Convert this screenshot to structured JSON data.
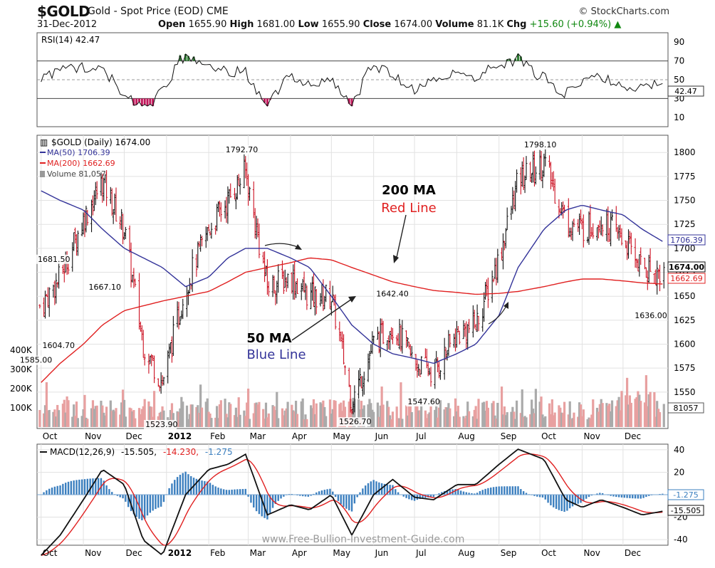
{
  "header": {
    "symbol": "$GOLD",
    "description": "Gold - Spot Price (EOD) CME",
    "brand": "© StockCharts.com",
    "date": "31-Dec-2012",
    "open_label": "Open",
    "open": "1655.90",
    "high_label": "High",
    "high": "1681.00",
    "low_label": "Low",
    "low": "1655.90",
    "close_label": "Close",
    "close": "1674.00",
    "volume_label": "Volume",
    "volume": "81.1K",
    "chg_label": "Chg",
    "chg": "+15.60 (+0.94%)"
  },
  "rsi_panel": {
    "label": "RSI(14) 42.47",
    "value_tag": "42.47",
    "ticks": [
      90,
      70,
      50,
      30,
      10
    ]
  },
  "price_panel": {
    "legend_title": "$GOLD (Daily) 1674.00",
    "legend_ma50": "MA(50) 1706.39",
    "legend_ma200": "MA(200) 1662.69",
    "legend_volume": "Volume 81,057",
    "price_tag_close": "1674.00",
    "price_tag_ma50": "1706.39",
    "price_tag_ma200": "1662.69",
    "volume_tag": "81057",
    "annot_200": "200 MA",
    "annot_200_sub": "Red Line",
    "annot_50": "50 MA",
    "annot_50_sub": "Blue Line",
    "vol_ticks": [
      "400K",
      "300K",
      "200K",
      "100K"
    ]
  },
  "macd_panel": {
    "label_prefix": "MACD(12,26,9)",
    "label_v1": "-15.505,",
    "label_v2": "-14.230,",
    "label_v3": "-1.275",
    "tag_hist": "-1.275",
    "tag_macd": "-15.505",
    "ticks": [
      40,
      20,
      0,
      -20,
      -40
    ],
    "watermark": "www.Free-Bullion-Investment-Guide.com"
  },
  "x_axis": [
    "Oct",
    "Nov",
    "Dec",
    "2012",
    "Feb",
    "Mar",
    "Apr",
    "May",
    "Jun",
    "Jul",
    "Aug",
    "Sep",
    "Oct",
    "Nov",
    "Dec"
  ],
  "colors": {
    "price_up": "#111111",
    "price_down": "#cc1122",
    "ma50": "#333399",
    "ma200": "#e02020",
    "volume_up": "#aaaaaa",
    "volume_down": "#e8a0a0",
    "macd_hist": "#3b7fbf",
    "rsi_fill_over": "#2e7d32",
    "rsi_fill_under": "#c2185b"
  },
  "chart_data": {
    "type": "line",
    "title": "$GOLD Gold - Spot Price (EOD) CME",
    "period": "Daily, Oct 2011 - Dec 2012",
    "x": [
      "2011-10-01",
      "2011-10-15",
      "2011-11-01",
      "2011-11-15",
      "2011-12-01",
      "2011-12-15",
      "2011-12-29",
      "2012-01-15",
      "2012-02-01",
      "2012-02-15",
      "2012-02-28",
      "2012-03-15",
      "2012-04-01",
      "2012-04-15",
      "2012-05-01",
      "2012-05-16",
      "2012-06-01",
      "2012-06-15",
      "2012-07-01",
      "2012-07-15",
      "2012-08-01",
      "2012-08-15",
      "2012-09-01",
      "2012-09-15",
      "2012-10-04",
      "2012-10-20",
      "2012-11-01",
      "2012-11-15",
      "2012-12-01",
      "2012-12-15",
      "2012-12-31"
    ],
    "series": [
      {
        "name": "$GOLD",
        "values": [
          1640,
          1670,
          1730,
          1770,
          1720,
          1600,
          1560,
          1660,
          1720,
          1750,
          1780,
          1660,
          1670,
          1650,
          1650,
          1540,
          1600,
          1620,
          1580,
          1570,
          1610,
          1620,
          1690,
          1770,
          1790,
          1730,
          1720,
          1730,
          1710,
          1680,
          1674
        ]
      },
      {
        "name": "MA(50)",
        "values": [
          1760,
          1750,
          1740,
          1720,
          1700,
          1690,
          1680,
          1660,
          1670,
          1690,
          1700,
          1700,
          1690,
          1680,
          1650,
          1620,
          1600,
          1590,
          1585,
          1580,
          1590,
          1600,
          1630,
          1680,
          1720,
          1740,
          1745,
          1740,
          1735,
          1720,
          1706.39
        ]
      },
      {
        "name": "MA(200)",
        "values": [
          1560,
          1580,
          1600,
          1620,
          1635,
          1640,
          1645,
          1650,
          1655,
          1665,
          1675,
          1680,
          1685,
          1690,
          1688,
          1680,
          1672,
          1665,
          1660,
          1656,
          1654,
          1652,
          1653,
          1655,
          1660,
          1665,
          1668,
          1668,
          1666,
          1664,
          1662.69
        ]
      }
    ],
    "annotations": [
      {
        "x": "2011-09-30",
        "value": 1585.0,
        "text": "1585.00"
      },
      {
        "x": "2011-10-04",
        "value": 1604.7,
        "text": "1604.70"
      },
      {
        "x": "2011-10-10",
        "value": 1681.5,
        "text": "1681.50"
      },
      {
        "x": "2011-11-08",
        "value": 1667.1,
        "text": "1667.10"
      },
      {
        "x": "2011-12-29",
        "value": 1523.9,
        "text": "1523.90"
      },
      {
        "x": "2012-02-28",
        "value": 1792.7,
        "text": "1792.70"
      },
      {
        "x": "2012-05-16",
        "value": 1526.7,
        "text": "1526.70"
      },
      {
        "x": "2012-06-06",
        "value": 1642.4,
        "text": "1642.40"
      },
      {
        "x": "2012-06-28",
        "value": 1547.6,
        "text": "1547.60"
      },
      {
        "x": "2012-10-04",
        "value": 1798.1,
        "text": "1798.10"
      },
      {
        "x": "2012-12-20",
        "value": 1636.0,
        "text": "1636.00"
      }
    ],
    "ylim": [
      1512,
      1818
    ],
    "yticks": [
      1800,
      1775,
      1750,
      1725,
      1700,
      1675,
      1650,
      1625,
      1600,
      1575,
      1550
    ],
    "rsi": {
      "name": "RSI(14)",
      "last": 42.47,
      "ylim": [
        0,
        100
      ]
    },
    "macd": {
      "name": "MACD(12,26,9)",
      "macd": -15.505,
      "signal": -14.23,
      "histogram": -1.275,
      "ylim": [
        -45,
        45
      ]
    },
    "grid": true,
    "legend": "top-left"
  }
}
